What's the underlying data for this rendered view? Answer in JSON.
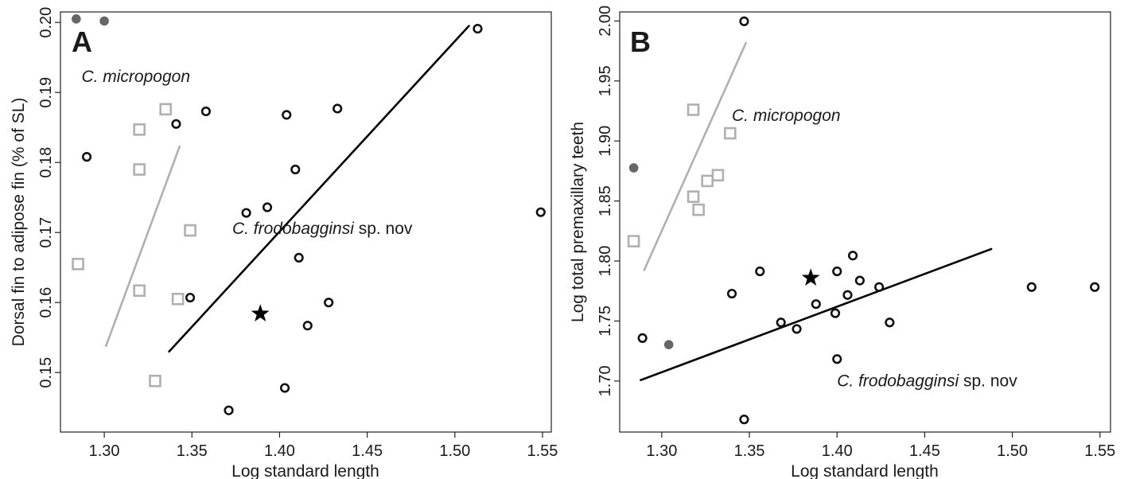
{
  "chart_data": [
    {
      "type": "scatter",
      "panel_label": "A",
      "xlabel": "Log standard length",
      "ylabel": "Dorsal fin to adipose fin (% of SL)",
      "xlim": [
        1.275,
        1.555
      ],
      "ylim": [
        0.1415,
        0.2015
      ],
      "xticks": [
        1.3,
        1.35,
        1.4,
        1.45,
        1.5,
        1.55
      ],
      "xtick_labels": [
        "1.30",
        "1.35",
        "1.40",
        "1.45",
        "1.50",
        "1.55"
      ],
      "yticks": [
        0.15,
        0.16,
        0.17,
        0.18,
        0.19,
        0.2
      ],
      "ytick_labels": [
        "0.15",
        "0.16",
        "0.17",
        "0.18",
        "0.19",
        "0.20"
      ],
      "grid": false,
      "annotations": [
        {
          "species": "C. micropogon",
          "suffix": "",
          "x": 1.287,
          "y": 0.1915
        },
        {
          "species": "C. frodobagginsi",
          "suffix": " sp. nov",
          "x": 1.373,
          "y": 0.1698
        }
      ],
      "series": [
        {
          "marker": "open-square",
          "color": "#b0b0b0",
          "points": [
            [
              1.285,
              0.1655
            ],
            [
              1.32,
              0.1847
            ],
            [
              1.335,
              0.1876
            ],
            [
              1.32,
              0.179
            ],
            [
              1.349,
              0.1703
            ],
            [
              1.32,
              0.1617
            ],
            [
              1.342,
              0.1605
            ],
            [
              1.329,
              0.1488
            ]
          ]
        },
        {
          "marker": "open-circle",
          "color": "#111111",
          "points": [
            [
              1.29,
              0.1808
            ],
            [
              1.341,
              0.1855
            ],
            [
              1.358,
              0.1873
            ],
            [
              1.404,
              0.1868
            ],
            [
              1.433,
              0.1877
            ],
            [
              1.409,
              0.179
            ],
            [
              1.381,
              0.1728
            ],
            [
              1.393,
              0.1736
            ],
            [
              1.411,
              0.1664
            ],
            [
              1.349,
              0.1607
            ],
            [
              1.428,
              0.16
            ],
            [
              1.416,
              0.1567
            ],
            [
              1.403,
              0.1478
            ],
            [
              1.371,
              0.1446
            ],
            [
              1.513,
              0.1991
            ],
            [
              1.549,
              0.1729
            ]
          ]
        },
        {
          "marker": "filled-circle",
          "color": "#666666",
          "points": [
            [
              1.284,
              0.2005
            ],
            [
              1.3,
              0.2002
            ]
          ]
        },
        {
          "marker": "star",
          "color": "#000000",
          "points": [
            [
              1.389,
              0.1584
            ]
          ]
        }
      ],
      "lines": [
        {
          "color": "#b0b0b0",
          "from": [
            1.301,
            0.1538
          ],
          "to": [
            1.343,
            0.1823
          ]
        },
        {
          "color": "#000000",
          "from": [
            1.337,
            0.153
          ],
          "to": [
            1.508,
            0.1995
          ]
        }
      ]
    },
    {
      "type": "scatter",
      "panel_label": "B",
      "xlabel": "Log standard length",
      "ylabel": "Log total premaxillary teeth",
      "xlim": [
        1.276,
        1.556
      ],
      "ylim": [
        1.6575,
        2.0075
      ],
      "xticks": [
        1.3,
        1.35,
        1.4,
        1.45,
        1.5,
        1.55
      ],
      "xtick_labels": [
        "1.30",
        "1.35",
        "1.40",
        "1.45",
        "1.50",
        "1.55"
      ],
      "yticks": [
        1.7,
        1.75,
        1.8,
        1.85,
        1.9,
        1.95,
        2.0
      ],
      "ytick_labels": [
        "1.70",
        "1.75",
        "1.80",
        "1.85",
        "1.90",
        "1.95",
        "2.00"
      ],
      "grid": false,
      "annotations": [
        {
          "species": "C. micropogon",
          "suffix": "",
          "x": 1.34,
          "y": 1.9168
        },
        {
          "species": "C. frodobagginsi",
          "suffix": " sp. nov",
          "x": 1.4,
          "y": 1.6955
        }
      ],
      "series": [
        {
          "marker": "open-square",
          "color": "#b0b0b0",
          "points": [
            [
              1.318,
              1.926
            ],
            [
              1.339,
              1.9064
            ],
            [
              1.332,
              1.8715
            ],
            [
              1.326,
              1.8667
            ],
            [
              1.318,
              1.8536
            ],
            [
              1.321,
              1.8427
            ],
            [
              1.284,
              1.8165
            ]
          ]
        },
        {
          "marker": "open-circle",
          "color": "#111111",
          "points": [
            [
              1.347,
              1.9997
            ],
            [
              1.289,
              1.7358
            ],
            [
              1.34,
              1.7728
            ],
            [
              1.356,
              1.7914
            ],
            [
              1.368,
              1.7488
            ],
            [
              1.377,
              1.7434
            ],
            [
              1.388,
              1.7641
            ],
            [
              1.399,
              1.7565
            ],
            [
              1.4,
              1.7914
            ],
            [
              1.406,
              1.7717
            ],
            [
              1.409,
              1.8045
            ],
            [
              1.413,
              1.7837
            ],
            [
              1.424,
              1.7783
            ],
            [
              1.43,
              1.7488
            ],
            [
              1.4,
              1.7183
            ],
            [
              1.347,
              1.668
            ],
            [
              1.511,
              1.7783
            ],
            [
              1.547,
              1.7783
            ]
          ]
        },
        {
          "marker": "filled-circle",
          "color": "#666666",
          "points": [
            [
              1.284,
              1.8776
            ],
            [
              1.304,
              1.7303
            ]
          ]
        },
        {
          "marker": "star",
          "color": "#000000",
          "points": [
            [
              1.385,
              1.7859
            ]
          ]
        }
      ],
      "lines": [
        {
          "color": "#b0b0b0",
          "from": [
            1.29,
            1.7925
          ],
          "to": [
            1.348,
            1.9817
          ]
        },
        {
          "color": "#000000",
          "from": [
            1.288,
            1.7008
          ],
          "to": [
            1.488,
            1.81
          ]
        }
      ]
    }
  ]
}
